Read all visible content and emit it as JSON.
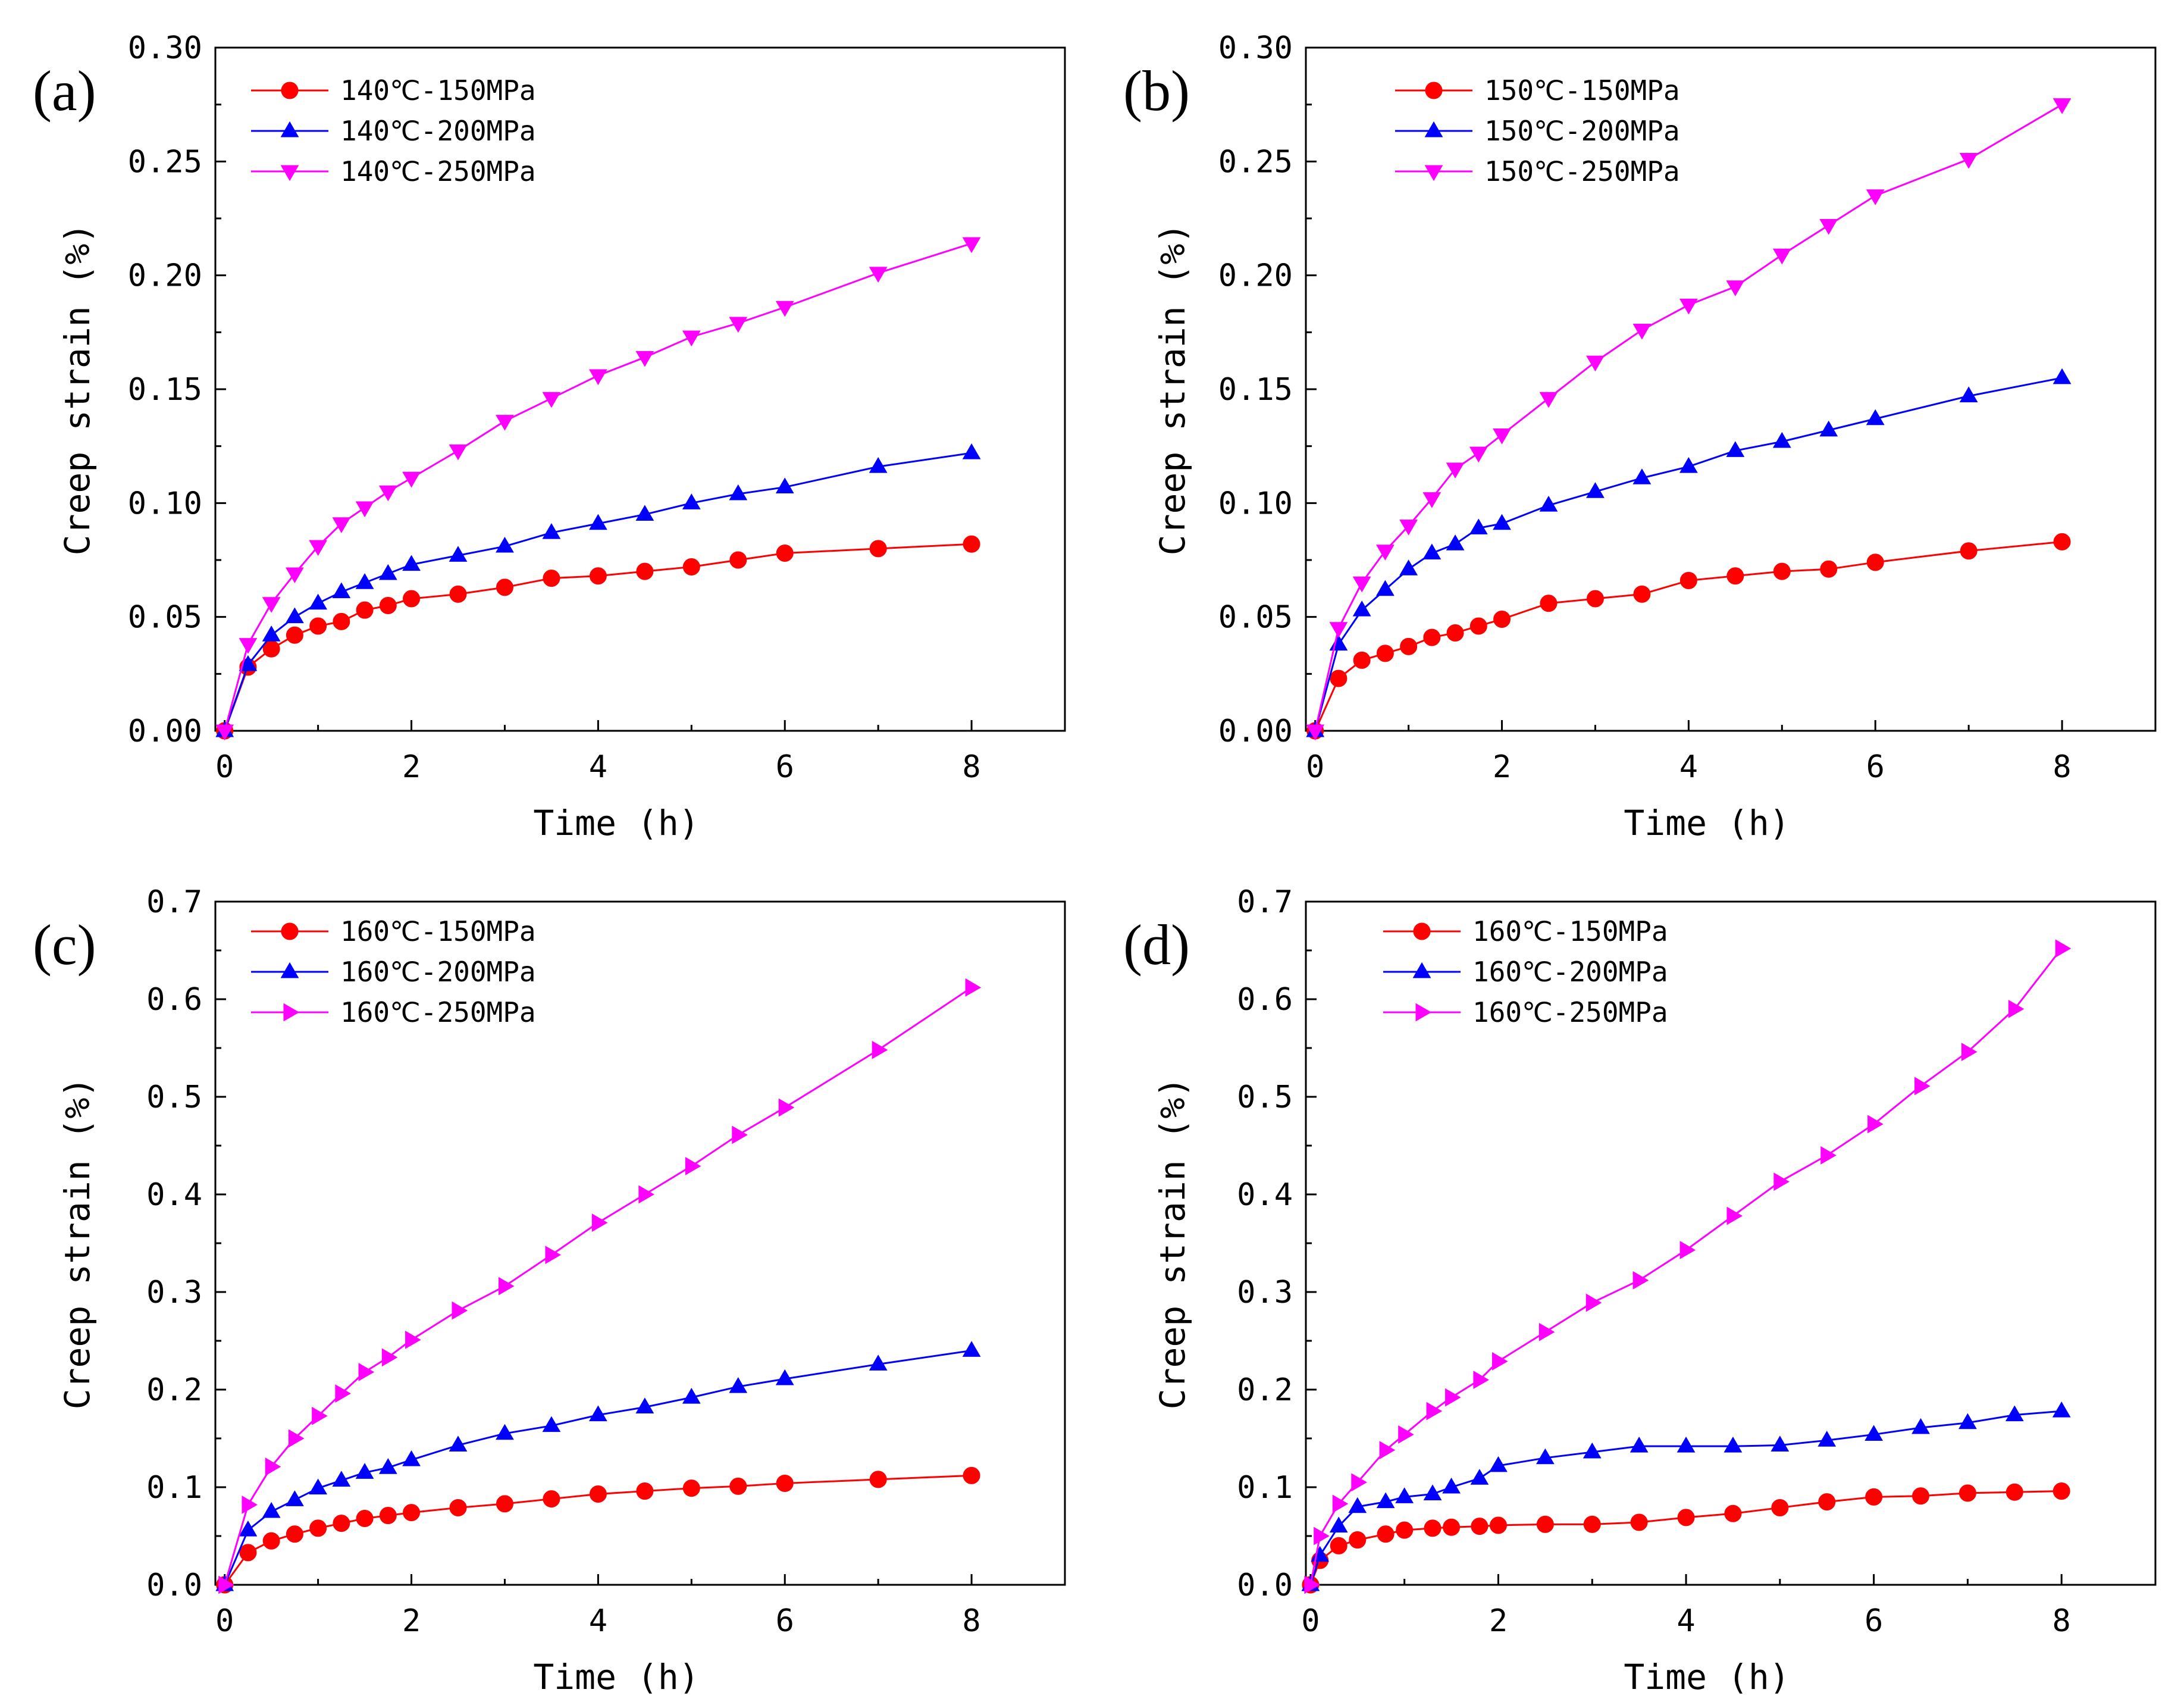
{
  "chart_data": [
    {
      "type": "line",
      "panel_label": "(a)",
      "xlabel": "Time (h)",
      "ylabel": "Creep strain (%)",
      "xlim": [
        -0.1,
        9.0
      ],
      "ylim": [
        0.0,
        0.3
      ],
      "xticks": [
        "0",
        "2",
        "4",
        "6",
        "8"
      ],
      "yticks": [
        "0.00",
        "0.05",
        "0.10",
        "0.15",
        "0.20",
        "0.25",
        "0.30"
      ],
      "xtick_values": [
        0,
        2,
        4,
        6,
        8
      ],
      "ytick_values": [
        0.0,
        0.05,
        0.1,
        0.15,
        0.2,
        0.25,
        0.3
      ],
      "legend_position": "top-left",
      "grid": false,
      "series": [
        {
          "name": "140℃-150MPa",
          "color": "#ff0000",
          "marker": "circle",
          "x": [
            0,
            0.25,
            0.5,
            0.75,
            1,
            1.25,
            1.5,
            1.75,
            2,
            2.5,
            3,
            3.5,
            4,
            4.5,
            5,
            5.5,
            6,
            7,
            8
          ],
          "y": [
            0,
            0.028,
            0.036,
            0.042,
            0.046,
            0.048,
            0.053,
            0.055,
            0.058,
            0.06,
            0.063,
            0.067,
            0.068,
            0.07,
            0.072,
            0.075,
            0.078,
            0.08,
            0.082
          ]
        },
        {
          "name": "140℃-200MPa",
          "color": "#0000ff",
          "marker": "triangle-up",
          "x": [
            0,
            0.25,
            0.5,
            0.75,
            1,
            1.25,
            1.5,
            1.75,
            2,
            2.5,
            3,
            3.5,
            4,
            4.5,
            5,
            5.5,
            6,
            7,
            8
          ],
          "y": [
            0,
            0.029,
            0.042,
            0.05,
            0.056,
            0.061,
            0.065,
            0.069,
            0.073,
            0.077,
            0.081,
            0.087,
            0.091,
            0.095,
            0.1,
            0.104,
            0.107,
            0.116,
            0.122
          ]
        },
        {
          "name": "140℃-250MPa",
          "color": "#ff00ff",
          "marker": "triangle-down",
          "x": [
            0,
            0.25,
            0.5,
            0.75,
            1,
            1.25,
            1.5,
            1.75,
            2,
            2.5,
            3,
            3.5,
            4,
            4.5,
            5,
            5.5,
            6,
            7,
            8
          ],
          "y": [
            0,
            0.038,
            0.056,
            0.069,
            0.081,
            0.091,
            0.098,
            0.105,
            0.111,
            0.123,
            0.136,
            0.146,
            0.156,
            0.164,
            0.173,
            0.179,
            0.186,
            0.201,
            0.214
          ]
        }
      ]
    },
    {
      "type": "line",
      "panel_label": "(b)",
      "xlabel": "Time (h)",
      "ylabel": "Creep strain (%)",
      "xlim": [
        -0.1,
        9.0
      ],
      "ylim": [
        0.0,
        0.3
      ],
      "xticks": [
        "0",
        "2",
        "4",
        "6",
        "8"
      ],
      "yticks": [
        "0.00",
        "0.05",
        "0.10",
        "0.15",
        "0.20",
        "0.25",
        "0.30"
      ],
      "xtick_values": [
        0,
        2,
        4,
        6,
        8
      ],
      "ytick_values": [
        0.0,
        0.05,
        0.1,
        0.15,
        0.2,
        0.25,
        0.3
      ],
      "legend_position": "top-left",
      "grid": false,
      "series": [
        {
          "name": "150℃-150MPa",
          "color": "#ff0000",
          "marker": "circle",
          "x": [
            0,
            0.25,
            0.5,
            0.75,
            1,
            1.25,
            1.5,
            1.75,
            2,
            2.5,
            3,
            3.5,
            4,
            4.5,
            5,
            5.5,
            6,
            7,
            8
          ],
          "y": [
            0,
            0.023,
            0.031,
            0.034,
            0.037,
            0.041,
            0.043,
            0.046,
            0.049,
            0.056,
            0.058,
            0.06,
            0.066,
            0.068,
            0.07,
            0.071,
            0.074,
            0.079,
            0.083
          ]
        },
        {
          "name": "150℃-200MPa",
          "color": "#0000ff",
          "marker": "triangle-up",
          "x": [
            0,
            0.25,
            0.5,
            0.75,
            1,
            1.25,
            1.5,
            1.75,
            2,
            2.5,
            3,
            3.5,
            4,
            4.5,
            5,
            5.5,
            6,
            7,
            8
          ],
          "y": [
            0,
            0.038,
            0.053,
            0.062,
            0.071,
            0.078,
            0.082,
            0.089,
            0.091,
            0.099,
            0.105,
            0.111,
            0.116,
            0.123,
            0.127,
            0.132,
            0.137,
            0.147,
            0.155
          ]
        },
        {
          "name": "150℃-250MPa",
          "color": "#ff00ff",
          "marker": "triangle-down",
          "x": [
            0,
            0.25,
            0.5,
            0.75,
            1,
            1.25,
            1.5,
            1.75,
            2,
            2.5,
            3,
            3.5,
            4,
            4.5,
            5,
            5.5,
            6,
            7,
            8
          ],
          "y": [
            0,
            0.045,
            0.065,
            0.079,
            0.09,
            0.102,
            0.115,
            0.122,
            0.13,
            0.146,
            0.162,
            0.176,
            0.187,
            0.195,
            0.209,
            0.222,
            0.235,
            0.251,
            0.275
          ]
        }
      ]
    },
    {
      "type": "line",
      "panel_label": "(c)",
      "xlabel": "Time (h)",
      "ylabel": "Creep strain (%)",
      "xlim": [
        -0.1,
        9.0
      ],
      "ylim": [
        0.0,
        0.7
      ],
      "xticks": [
        "0",
        "2",
        "4",
        "6",
        "8"
      ],
      "yticks": [
        "0.0",
        "0.1",
        "0.2",
        "0.3",
        "0.4",
        "0.5",
        "0.6",
        "0.7"
      ],
      "xtick_values": [
        0,
        2,
        4,
        6,
        8
      ],
      "ytick_values": [
        0.0,
        0.1,
        0.2,
        0.3,
        0.4,
        0.5,
        0.6,
        0.7
      ],
      "legend_position": "top-left",
      "grid": false,
      "series": [
        {
          "name": "160℃-150MPa",
          "color": "#ff0000",
          "marker": "circle",
          "x": [
            0,
            0.25,
            0.5,
            0.75,
            1,
            1.25,
            1.5,
            1.75,
            2,
            2.5,
            3,
            3.5,
            4,
            4.5,
            5,
            5.5,
            6,
            7,
            8
          ],
          "y": [
            0,
            0.033,
            0.045,
            0.052,
            0.058,
            0.063,
            0.068,
            0.071,
            0.074,
            0.079,
            0.083,
            0.088,
            0.093,
            0.096,
            0.099,
            0.101,
            0.104,
            0.108,
            0.112
          ]
        },
        {
          "name": "160℃-200MPa",
          "color": "#0000ff",
          "marker": "triangle-up",
          "x": [
            0,
            0.25,
            0.5,
            0.75,
            1,
            1.25,
            1.5,
            1.75,
            2,
            2.5,
            3,
            3.5,
            4,
            4.5,
            5,
            5.5,
            6,
            7,
            8
          ],
          "y": [
            0,
            0.056,
            0.075,
            0.087,
            0.099,
            0.107,
            0.115,
            0.12,
            0.128,
            0.143,
            0.155,
            0.163,
            0.174,
            0.182,
            0.192,
            0.203,
            0.211,
            0.226,
            0.24
          ]
        },
        {
          "name": "160℃-250MPa",
          "color": "#ff00ff",
          "marker": "triangle-right",
          "x": [
            0,
            0.25,
            0.5,
            0.75,
            1,
            1.25,
            1.5,
            1.75,
            2,
            2.5,
            3,
            3.5,
            4,
            4.5,
            5,
            5.5,
            6,
            7,
            8
          ],
          "y": [
            0,
            0.082,
            0.121,
            0.15,
            0.173,
            0.196,
            0.218,
            0.233,
            0.251,
            0.281,
            0.306,
            0.338,
            0.371,
            0.4,
            0.429,
            0.461,
            0.489,
            0.548,
            0.612
          ]
        }
      ]
    },
    {
      "type": "line",
      "panel_label": "(d)",
      "xlabel": "Time (h)",
      "ylabel": "Creep strain (%)",
      "xlim": [
        -0.05,
        9.0
      ],
      "ylim": [
        0.0,
        0.7
      ],
      "xticks": [
        "0",
        "2",
        "4",
        "6",
        "8"
      ],
      "yticks": [
        "0.0",
        "0.1",
        "0.2",
        "0.3",
        "0.4",
        "0.5",
        "0.6",
        "0.7"
      ],
      "xtick_values": [
        0,
        2,
        4,
        6,
        8
      ],
      "ytick_values": [
        0.0,
        0.1,
        0.2,
        0.3,
        0.4,
        0.5,
        0.6,
        0.7
      ],
      "legend_position": "top-left",
      "grid": false,
      "series": [
        {
          "name": "160℃-150MPa",
          "color": "#ff0000",
          "marker": "circle",
          "x": [
            0,
            0.1,
            0.3,
            0.5,
            0.8,
            1,
            1.3,
            1.5,
            1.8,
            2,
            2.5,
            3,
            3.5,
            4,
            4.5,
            5,
            5.5,
            6,
            6.5,
            7,
            7.5,
            8
          ],
          "y": [
            0,
            0.025,
            0.04,
            0.046,
            0.052,
            0.056,
            0.058,
            0.059,
            0.06,
            0.061,
            0.062,
            0.062,
            0.064,
            0.069,
            0.073,
            0.079,
            0.085,
            0.09,
            0.091,
            0.094,
            0.095,
            0.096
          ]
        },
        {
          "name": "160℃-200MPa",
          "color": "#0000ff",
          "marker": "triangle-up",
          "x": [
            0,
            0.1,
            0.3,
            0.5,
            0.8,
            1,
            1.3,
            1.5,
            1.8,
            2,
            2.5,
            3,
            3.5,
            4,
            4.5,
            5,
            5.5,
            6,
            6.5,
            7,
            7.5,
            8
          ],
          "y": [
            0,
            0.03,
            0.06,
            0.08,
            0.085,
            0.09,
            0.093,
            0.1,
            0.109,
            0.122,
            0.13,
            0.136,
            0.142,
            0.142,
            0.142,
            0.143,
            0.148,
            0.154,
            0.161,
            0.166,
            0.174,
            0.178
          ]
        },
        {
          "name": "160℃-250MPa",
          "color": "#ff00ff",
          "marker": "triangle-right",
          "x": [
            0,
            0.1,
            0.3,
            0.5,
            0.8,
            1,
            1.3,
            1.5,
            1.8,
            2,
            2.5,
            3,
            3.5,
            4,
            4.5,
            5,
            5.5,
            6,
            6.5,
            7,
            7.5,
            8
          ],
          "y": [
            0,
            0.05,
            0.083,
            0.105,
            0.138,
            0.154,
            0.178,
            0.192,
            0.21,
            0.229,
            0.259,
            0.289,
            0.312,
            0.343,
            0.378,
            0.413,
            0.44,
            0.472,
            0.511,
            0.546,
            0.59,
            0.652
          ]
        }
      ]
    }
  ]
}
